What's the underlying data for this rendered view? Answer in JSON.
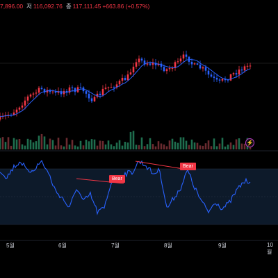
{
  "ohlc": {
    "close_partial": "7,896.00",
    "low_label": "저",
    "low_value": "116,092.76",
    "close_label": "종",
    "close_value": "117,111.45",
    "change": "+663.86 (+0.57%)"
  },
  "colors": {
    "up": "#f23645",
    "down": "#2962ff",
    "ma": "#2962ff",
    "rsi": "#2962ff",
    "divergence": "#f23645",
    "volume_up": "#1f6e4e",
    "volume_down": "#6b2b30",
    "rsi_band_fill": "#0d1a2a",
    "background": "#000000"
  },
  "icons": {
    "flash": "lightning-icon"
  },
  "divergence_labels": [
    "Bear",
    "Bear"
  ],
  "x_axis": {
    "months": [
      "5월",
      "6월",
      "7월",
      "8월",
      "9월",
      "10월"
    ]
  },
  "chart_data": [
    {
      "type": "candlestick",
      "title": "",
      "x_unit": "day",
      "trend_note": "rise from ~5월 to late 7월 peak, consolidation through 8월, dip in mid-9월, recovery",
      "ma_series": {
        "name": ""
      }
    },
    {
      "type": "bar",
      "title": "",
      "subject": "volume"
    },
    {
      "type": "line",
      "title": "",
      "subject": "rsi",
      "band": [
        30,
        70
      ],
      "divergences": [
        {
          "label": "Bear",
          "segment": "late 6월 to early 7월"
        },
        {
          "label": "Bear",
          "segment": "late 7월 to mid 8월"
        }
      ]
    }
  ]
}
